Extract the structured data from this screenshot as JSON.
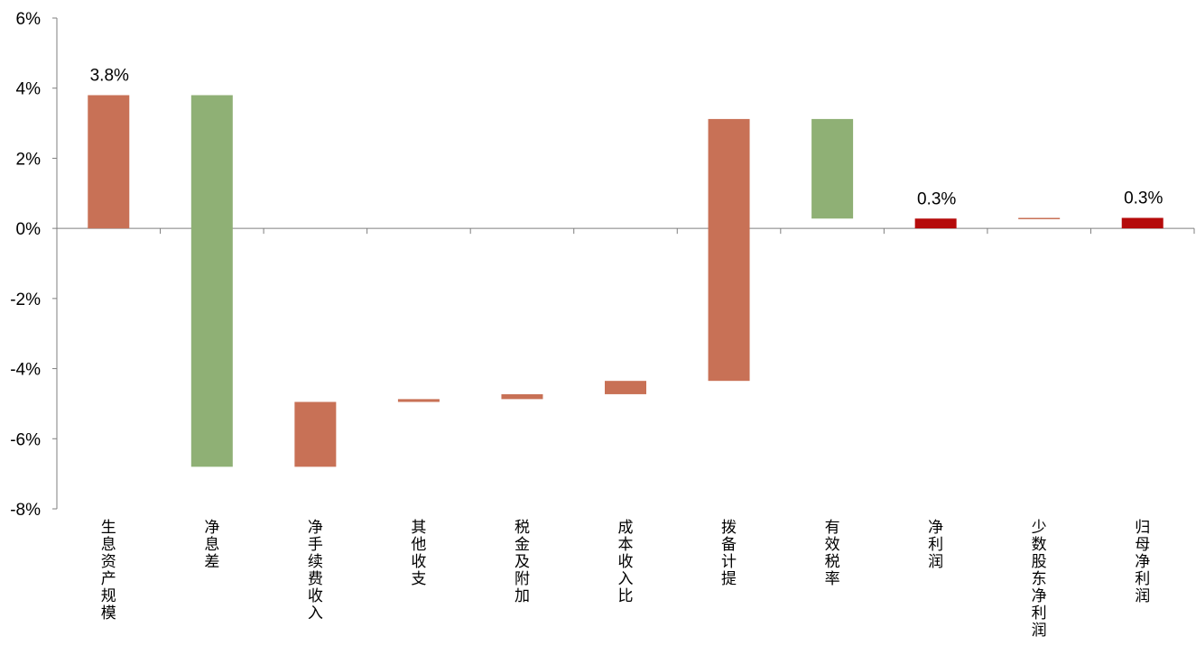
{
  "chart_data": {
    "type": "waterfall",
    "title": "",
    "xlabel": "",
    "ylabel": "",
    "y_axis": {
      "min": -8,
      "max": 6,
      "step": 2,
      "unit": "%",
      "tick_labels": [
        "-8%",
        "-6%",
        "-4%",
        "-2%",
        "0%",
        "2%",
        "4%",
        "6%"
      ]
    },
    "grid": false,
    "legend": "none",
    "categories": [
      "生息资产规模",
      "净息差",
      "净手续费收入",
      "其他收支",
      "税金及附加",
      "成本收入比",
      "拨备计提",
      "有效税率",
      "净利润",
      "少数股东净利润",
      "归母净利润"
    ],
    "bars": [
      {
        "category": "生息资产规模",
        "start": 0,
        "end": 3.8,
        "color": "#C87156",
        "label": "3.8%"
      },
      {
        "category": "净息差",
        "start": 3.8,
        "end": -6.8,
        "color": "#8FB075",
        "label": ""
      },
      {
        "category": "净手续费收入",
        "start": -6.8,
        "end": -4.95,
        "color": "#C87156",
        "label": ""
      },
      {
        "category": "其他收支",
        "start": -4.95,
        "end": -4.87,
        "color": "#C87156",
        "label": ""
      },
      {
        "category": "税金及附加",
        "start": -4.87,
        "end": -4.73,
        "color": "#C87156",
        "label": ""
      },
      {
        "category": "成本收入比",
        "start": -4.73,
        "end": -4.35,
        "color": "#C87156",
        "label": ""
      },
      {
        "category": "拨备计提",
        "start": -4.35,
        "end": 3.12,
        "color": "#C87156",
        "label": ""
      },
      {
        "category": "有效税率",
        "start": 3.12,
        "end": 0.28,
        "color": "#8FB075",
        "label": ""
      },
      {
        "category": "净利润",
        "start": 0,
        "end": 0.28,
        "color": "#B50A0A",
        "label": "0.3%"
      },
      {
        "category": "少数股东净利润",
        "start": 0.28,
        "end": 0.3,
        "color": "#C87156",
        "label": ""
      },
      {
        "category": "归母净利润",
        "start": 0,
        "end": 0.3,
        "color": "#B50A0A",
        "label": "0.3%"
      }
    ],
    "colors": {
      "increase": "#C87156",
      "decrease": "#8FB075",
      "total": "#B50A0A",
      "axis": "#7F7F7F"
    }
  }
}
